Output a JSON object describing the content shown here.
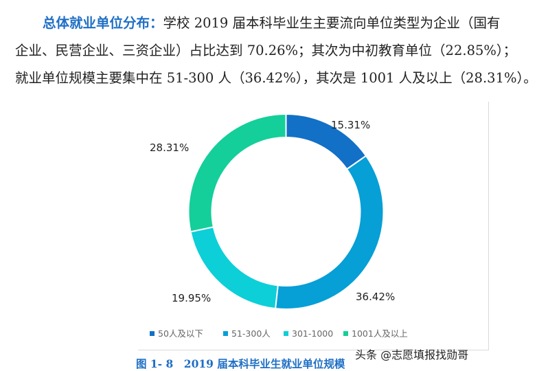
{
  "paragraph": {
    "heading": "总体就业单位分布：",
    "line1_rest": "学校 2019 届本科毕业生主要流向单位类型为企业（国有",
    "line2": "企业、民营企业、三资企业）占比达到 70.26%；其次为中初教育单位（22.85%）；",
    "line3": "就业单位规模主要集中在 51-300 人（36.42%），其次是 1001 人及以上（28.31%）。"
  },
  "chart_data": {
    "type": "pie",
    "donut": true,
    "categories": [
      "50人及以下",
      "51-300人",
      "301-1000",
      "1001人及以上"
    ],
    "values": [
      15.31,
      36.42,
      19.95,
      28.31
    ],
    "labels": [
      "15.31%",
      "36.42%",
      "19.95%",
      "28.31%"
    ],
    "colors": [
      "#1270c6",
      "#069fd6",
      "#0dcfd8",
      "#14cf9a"
    ],
    "legend_position": "bottom",
    "title": ""
  },
  "caption": "图 1- 8　2019 届本科毕业生就业单位规模",
  "watermark": "头条 @志愿填报找勋哥"
}
